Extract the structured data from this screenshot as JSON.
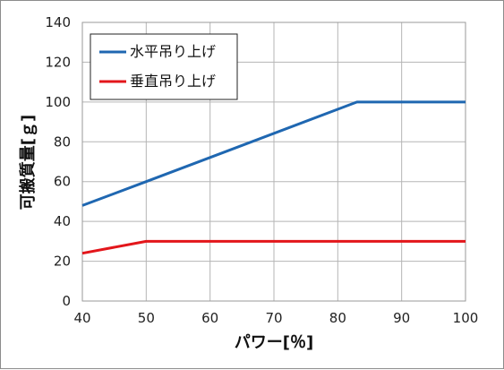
{
  "chart_data": {
    "type": "line",
    "xlabel": "パワー[％]",
    "ylabel": "可搬質量[ｇ]",
    "xlim": [
      40,
      100
    ],
    "ylim": [
      0,
      140
    ],
    "xticks": [
      40,
      50,
      60,
      70,
      80,
      90,
      100
    ],
    "yticks": [
      0,
      20,
      40,
      60,
      80,
      100,
      120,
      140
    ],
    "grid": true,
    "legend_position": "top-left",
    "series": [
      {
        "name": "水平吊り上げ",
        "color": "#1f67b1",
        "x": [
          40,
          50,
          83,
          100
        ],
        "y": [
          48,
          60,
          100,
          100
        ]
      },
      {
        "name": "垂直吊り上げ",
        "color": "#e3161b",
        "x": [
          40,
          50,
          100
        ],
        "y": [
          24,
          30,
          30
        ]
      }
    ]
  }
}
